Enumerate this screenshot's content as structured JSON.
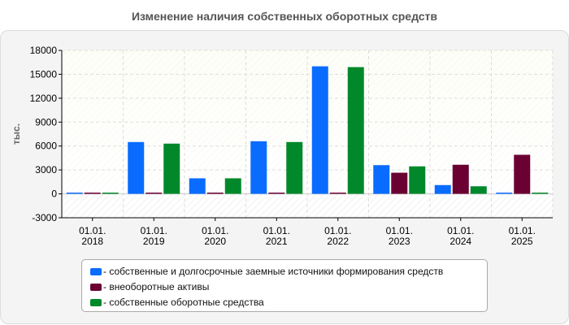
{
  "chart_data": {
    "type": "bar",
    "title": "Изменение наличия собственных оборотных средств",
    "ylabel": "тыс.",
    "xlabel": "",
    "ylim": [
      -3000,
      18000
    ],
    "yticks": [
      "18000",
      "15000",
      "12000",
      "9000",
      "6000",
      "3000",
      "0",
      "-3000"
    ],
    "categories": [
      [
        "01.01.",
        "2018"
      ],
      [
        "01.01.",
        "2019"
      ],
      [
        "01.01.",
        "2020"
      ],
      [
        "01.01.",
        "2021"
      ],
      [
        "01.01.",
        "2022"
      ],
      [
        "01.01.",
        "2023"
      ],
      [
        "01.01.",
        "2024"
      ],
      [
        "01.01.",
        "2025"
      ]
    ],
    "series": [
      {
        "name": "- собственные и долгосрочные заемные источники формирования средств",
        "color": "#0a6cff",
        "values": [
          150,
          6500,
          1950,
          6600,
          16000,
          3600,
          1100,
          150
        ]
      },
      {
        "name": "- внеоборотные активы",
        "color": "#6b0033",
        "values": [
          150,
          150,
          150,
          150,
          150,
          2650,
          3650,
          4900
        ]
      },
      {
        "name": "- собственные оборотные средства",
        "color": "#00882a",
        "values": [
          150,
          6300,
          1950,
          6500,
          15900,
          3450,
          950,
          150
        ]
      }
    ],
    "grid": true,
    "legend_position": "bottom"
  }
}
